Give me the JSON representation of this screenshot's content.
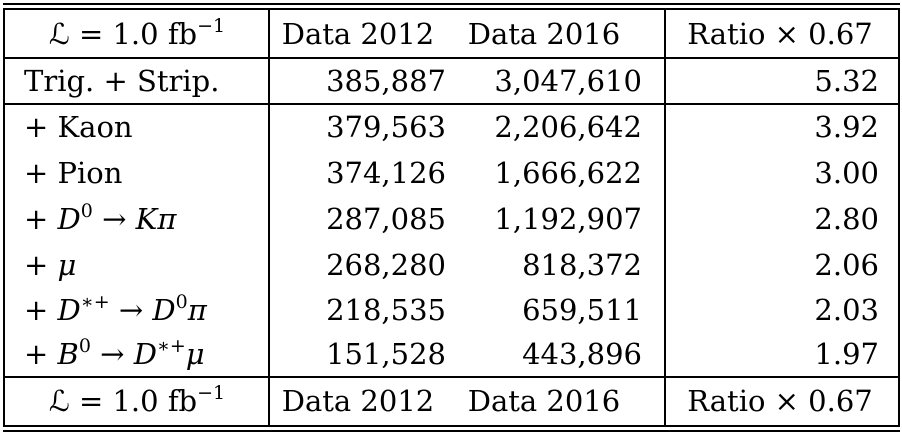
{
  "table": {
    "header": {
      "lumi": "ℒ = 1.0 fb",
      "lumi_exp": "−1",
      "col1": "Data 2012",
      "col2": "Data 2016",
      "col3": "Ratio × 0.67"
    },
    "rows": [
      {
        "label": "Trig. + Strip.",
        "d2012": "385,887",
        "d2016": "3,047,610",
        "ratio": "5.32"
      },
      {
        "label_pre": "+ Kaon",
        "d2012": "379,563",
        "d2016": "2,206,642",
        "ratio": "3.92"
      },
      {
        "label_pre": "+ Pion",
        "d2012": "374,126",
        "d2016": "1,666,622",
        "ratio": "3.00"
      },
      {
        "label_pre": "+ ",
        "sym1": "D",
        "sup1": "0",
        "arrow": " → ",
        "sym2": "K",
        "sym3": "π",
        "d2012": "287,085",
        "d2016": "1,192,907",
        "ratio": "2.80"
      },
      {
        "label_pre": "+ ",
        "sym1": "μ",
        "d2012": "268,280",
        "d2016": "818,372",
        "ratio": "2.06"
      },
      {
        "label_pre": "+ ",
        "sym1": "D",
        "sup1": "∗+",
        "arrow": " → ",
        "sym2": "D",
        "sup2": "0",
        "sym3": "π",
        "d2012": "218,535",
        "d2016": "659,511",
        "ratio": "2.03"
      },
      {
        "label_pre": "+ ",
        "sym1": "B",
        "sup1": "0",
        "arrow": " → ",
        "sym2": "D",
        "sup2": "∗+",
        "sym3": "μ",
        "d2012": "151,528",
        "d2016": "443,896",
        "ratio": "1.97"
      }
    ],
    "footer": {
      "lumi": "ℒ = 1.0 fb",
      "lumi_exp": "−1",
      "col1": "Data 2012",
      "col2": "Data 2016",
      "col3": "Ratio × 0.67"
    }
  }
}
